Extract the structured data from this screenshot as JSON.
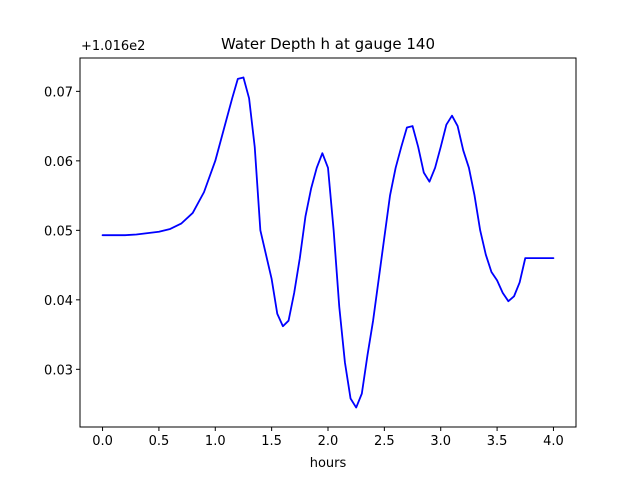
{
  "chart_data": {
    "type": "line",
    "title": "Water Depth h at gauge 140",
    "xlabel": "hours",
    "ylabel": "",
    "y_offset_label": "+1.016e2",
    "y_offset": 101.6,
    "xlim": [
      -0.2,
      4.2
    ],
    "ylim": [
      0.0217,
      0.0748
    ],
    "x_ticks": [
      0.0,
      0.5,
      1.0,
      1.5,
      2.0,
      2.5,
      3.0,
      3.5,
      4.0
    ],
    "x_tick_labels": [
      "0.0",
      "0.5",
      "1.0",
      "1.5",
      "2.0",
      "2.5",
      "3.0",
      "3.5",
      "4.0"
    ],
    "y_ticks": [
      0.03,
      0.04,
      0.05,
      0.06,
      0.07
    ],
    "y_tick_labels": [
      "0.03",
      "0.04",
      "0.05",
      "0.06",
      "0.07"
    ],
    "grid": false,
    "line_color": "#0000ff",
    "series": [
      {
        "x": [
          0.0,
          0.1,
          0.2,
          0.3,
          0.4,
          0.5,
          0.6,
          0.7,
          0.8,
          0.9,
          1.0,
          1.05,
          1.1,
          1.15,
          1.2,
          1.25,
          1.3,
          1.35,
          1.4,
          1.5,
          1.55,
          1.6,
          1.65,
          1.7,
          1.75,
          1.8,
          1.85,
          1.9,
          1.95,
          2.0,
          2.05,
          2.1,
          2.15,
          2.2,
          2.25,
          2.3,
          2.35,
          2.4,
          2.45,
          2.5,
          2.55,
          2.6,
          2.65,
          2.7,
          2.75,
          2.8,
          2.85,
          2.9,
          2.95,
          3.0,
          3.05,
          3.1,
          3.15,
          3.2,
          3.25,
          3.3,
          3.35,
          3.4,
          3.45,
          3.5,
          3.55,
          3.6,
          3.65,
          3.7,
          3.75,
          3.8,
          3.85,
          3.9,
          3.95,
          4.0
        ],
        "y": [
          0.0493,
          0.0493,
          0.0493,
          0.0494,
          0.0496,
          0.0498,
          0.0502,
          0.051,
          0.0525,
          0.0555,
          0.06,
          0.063,
          0.066,
          0.069,
          0.0718,
          0.072,
          0.069,
          0.062,
          0.05,
          0.043,
          0.038,
          0.0362,
          0.037,
          0.041,
          0.046,
          0.052,
          0.056,
          0.059,
          0.0611,
          0.059,
          0.05,
          0.039,
          0.031,
          0.0258,
          0.0245,
          0.0265,
          0.032,
          0.037,
          0.043,
          0.049,
          0.055,
          0.059,
          0.062,
          0.0648,
          0.065,
          0.062,
          0.0583,
          0.057,
          0.059,
          0.062,
          0.0652,
          0.0665,
          0.065,
          0.0615,
          0.059,
          0.055,
          0.05,
          0.0465,
          0.044,
          0.0428,
          0.041,
          0.0398,
          0.0405,
          0.0425,
          0.046,
          0.046,
          0.046,
          0.046,
          0.046,
          0.046
        ]
      }
    ]
  }
}
